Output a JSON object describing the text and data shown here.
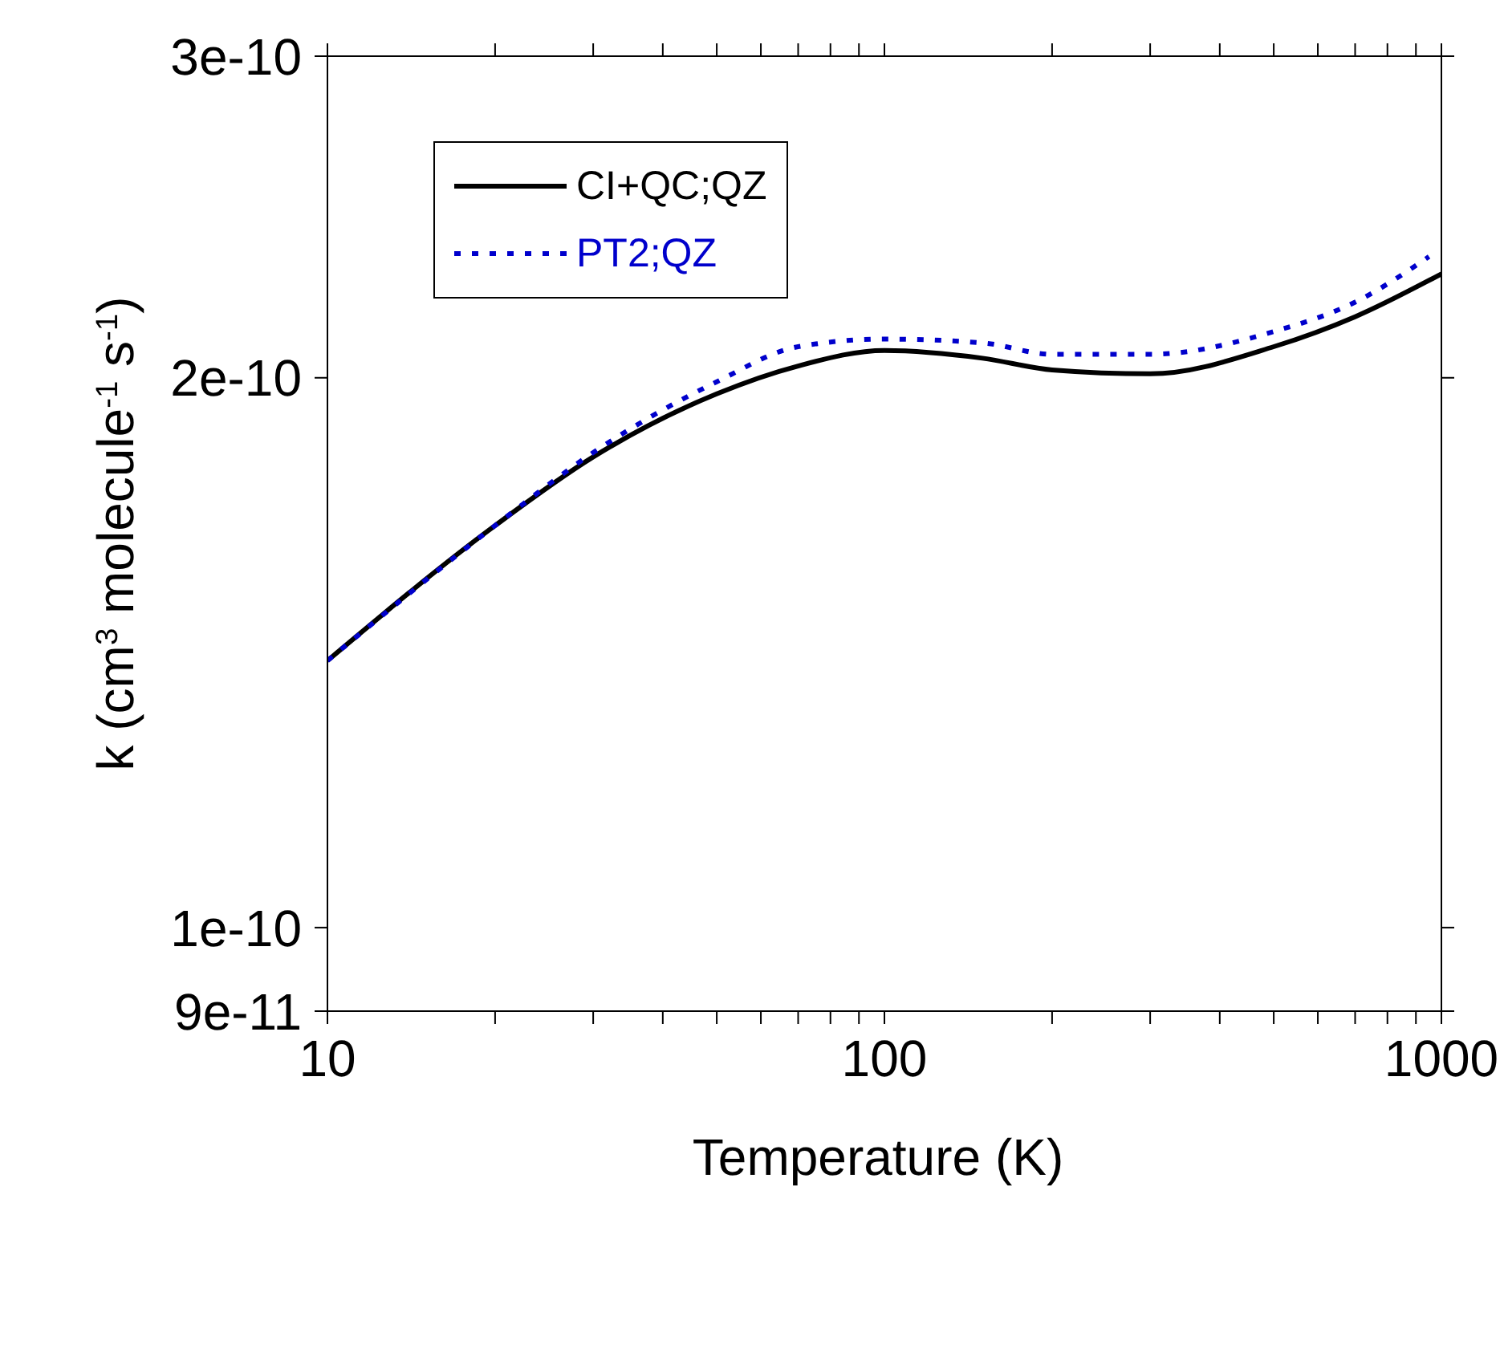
{
  "chart_data": {
    "type": "line",
    "xlabel": "Temperature (K)",
    "ylabel": "k (cm$^{3}$ molecule$^{-1}$ s$^{-1}$)",
    "log": "xy",
    "xlim": [
      10,
      1000
    ],
    "ylim": [
      9e-11,
      3e-10
    ],
    "xticks": [
      10,
      {
        "value": 20,
        "label": null
      },
      {
        "value": 30,
        "label": null
      },
      {
        "value": 40,
        "label": null
      },
      {
        "value": 50,
        "label": null
      },
      {
        "value": 60,
        "label": null
      },
      {
        "value": 70,
        "label": null
      },
      {
        "value": 80,
        "label": null
      },
      {
        "value": 90,
        "label": null
      },
      100,
      {
        "value": 200,
        "label": null
      },
      {
        "value": 300,
        "label": null
      },
      {
        "value": 400,
        "label": null
      },
      {
        "value": 500,
        "label": null
      },
      {
        "value": 600,
        "label": null
      },
      {
        "value": 700,
        "label": null
      },
      {
        "value": 800,
        "label": null
      },
      {
        "value": 900,
        "label": null
      },
      1000
    ],
    "yticks": [
      9e-11,
      1e-10,
      2e-10,
      3e-10
    ],
    "legend": "top left",
    "marker": "none",
    "series": [
      {
        "name": "CI+QC;QZ",
        "color": "#000000",
        "line_style": "solid",
        "x": [
          10,
          20,
          30,
          50,
          70,
          100,
          150,
          200,
          300,
          500,
          700,
          1000
        ],
        "values": [
          1.4e-10,
          1.66e-10,
          1.81e-10,
          1.96e-10,
          2.03e-10,
          2.07e-10,
          2.05e-10,
          2.02e-10,
          2.01e-10,
          2.08e-10,
          2.16e-10,
          2.28e-10
        ]
      },
      {
        "name": "PT2;QZ",
        "color": "#0000cc",
        "line_style": "dotted",
        "x": [
          10,
          20,
          30,
          50,
          70,
          100,
          150,
          200,
          300,
          500,
          700,
          950
        ],
        "values": [
          1.4e-10,
          1.66e-10,
          1.82e-10,
          1.99e-10,
          2.08e-10,
          2.1e-10,
          2.09e-10,
          2.06e-10,
          2.06e-10,
          2.12e-10,
          2.2e-10,
          2.33e-10
        ]
      }
    ]
  }
}
